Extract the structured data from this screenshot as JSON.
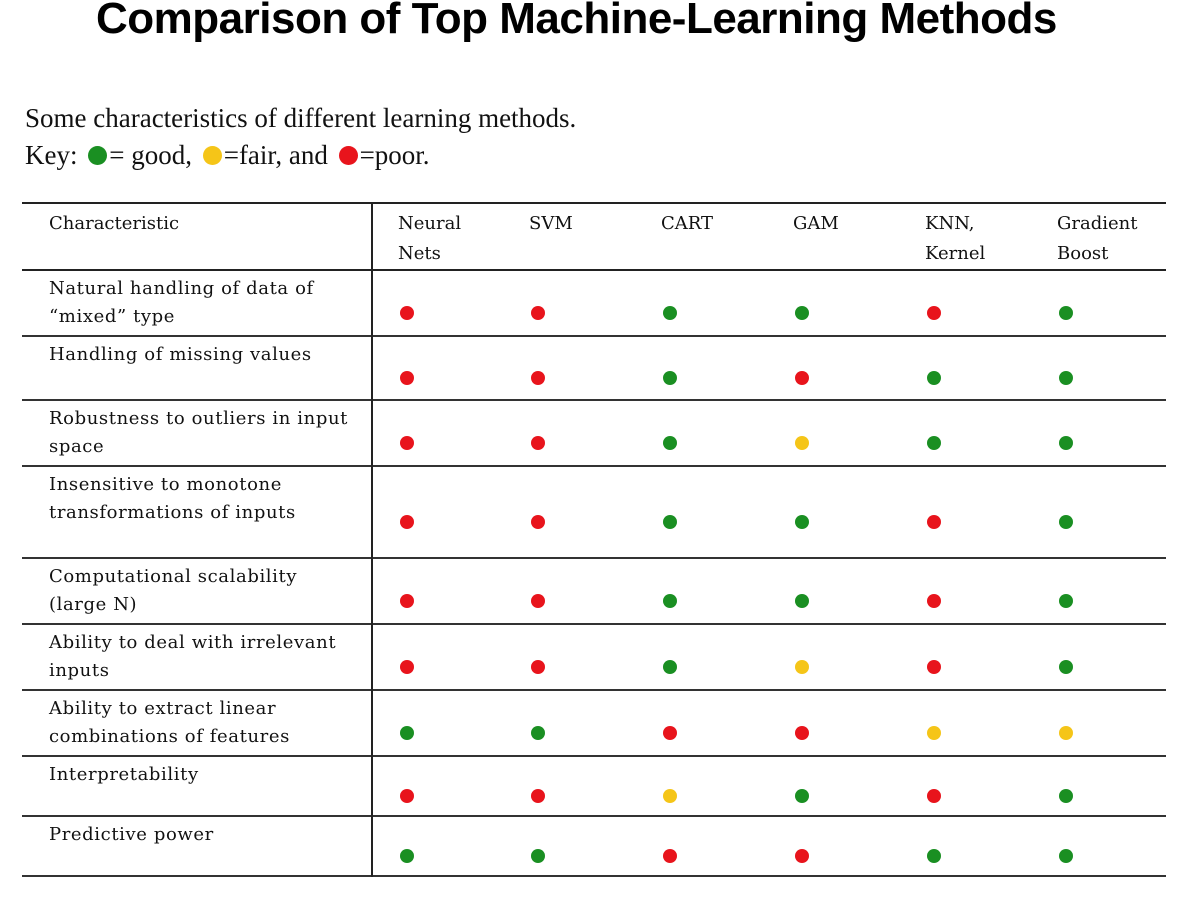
{
  "title": "Comparison of Top Machine-Learning Methods",
  "intro": "Some characteristics of different learning methods.",
  "key": {
    "prefix": "Key:",
    "good_label": "= good,",
    "fair_label": "=fair, and",
    "poor_label": "=poor."
  },
  "colors": {
    "good": "#1a8f22",
    "fair": "#f5c518",
    "poor": "#e8141c"
  },
  "table": {
    "header_characteristic": "Characteristic",
    "methods": [
      [
        "Neural",
        "Nets"
      ],
      [
        "SVM",
        ""
      ],
      [
        "CART",
        ""
      ],
      [
        "GAM",
        ""
      ],
      [
        "KNN,",
        "Kernel"
      ],
      [
        "Gradient",
        "Boost"
      ]
    ],
    "rows": [
      {
        "characteristic": "Natural handling of data of “mixed” type",
        "ratings": [
          "poor",
          "poor",
          "good",
          "good",
          "poor",
          "good"
        ]
      },
      {
        "characteristic": "Handling of missing values",
        "ratings": [
          "poor",
          "poor",
          "good",
          "poor",
          "good",
          "good"
        ]
      },
      {
        "characteristic": "Robustness to outliers in input space",
        "ratings": [
          "poor",
          "poor",
          "good",
          "fair",
          "good",
          "good"
        ]
      },
      {
        "characteristic": "Insensitive to monotone transformations of inputs",
        "ratings": [
          "poor",
          "poor",
          "good",
          "good",
          "poor",
          "good"
        ]
      },
      {
        "characteristic": "Computational scalability (large N)",
        "ratings": [
          "poor",
          "poor",
          "good",
          "good",
          "poor",
          "good"
        ]
      },
      {
        "characteristic": "Ability to deal with irrelevant inputs",
        "ratings": [
          "poor",
          "poor",
          "good",
          "fair",
          "poor",
          "good"
        ]
      },
      {
        "characteristic": "Ability to extract linear combinations of features",
        "ratings": [
          "good",
          "good",
          "poor",
          "poor",
          "fair",
          "fair"
        ]
      },
      {
        "characteristic": "Interpretability",
        "ratings": [
          "poor",
          "poor",
          "fair",
          "good",
          "poor",
          "good"
        ]
      },
      {
        "characteristic": "Predictive power",
        "ratings": [
          "good",
          "good",
          "poor",
          "poor",
          "good",
          "good"
        ]
      }
    ]
  }
}
